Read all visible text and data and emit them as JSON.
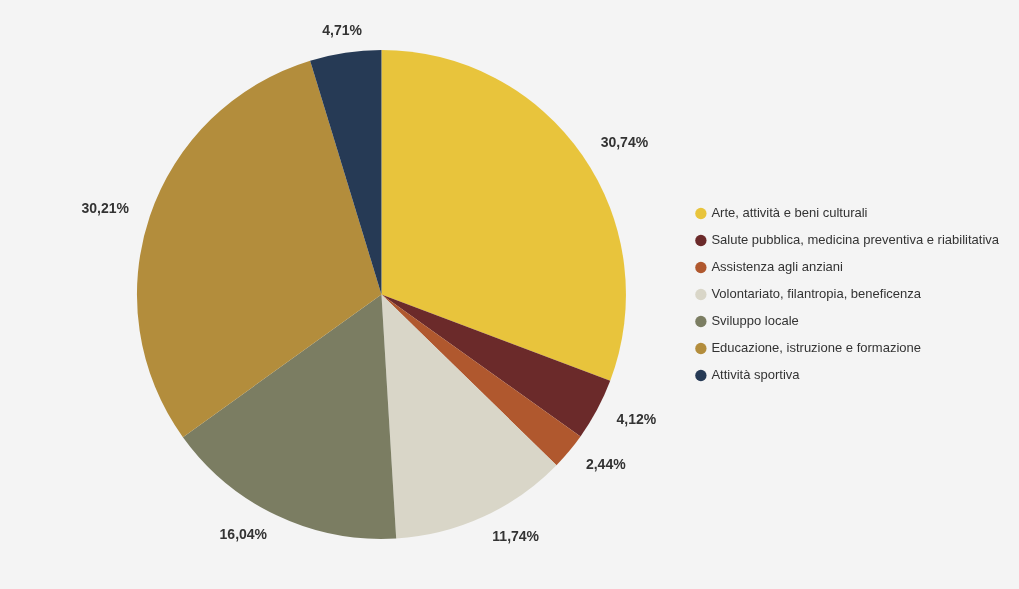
{
  "chart_data": {
    "type": "pie",
    "categories": [
      "Arte, attività e beni culturali",
      "Salute pubblica, medicina preventiva e riabilitativa",
      "Assistenza agli anziani",
      "Volontariato, filantropia, beneficenza",
      "Sviluppo locale",
      "Educazione, istruzione e formazione",
      "Attività sportiva"
    ],
    "values": [
      30.74,
      4.12,
      2.44,
      11.74,
      16.04,
      30.21,
      4.71
    ],
    "value_labels": [
      "30,74%",
      "4,12%",
      "2,44%",
      "11,74%",
      "16,04%",
      "30,21%",
      "4,71%"
    ],
    "colors": [
      "#e8c43c",
      "#6b2a2a",
      "#b0582e",
      "#d9d6c8",
      "#7b7d62",
      "#b38d3c",
      "#263a55"
    ],
    "legend": "right"
  }
}
